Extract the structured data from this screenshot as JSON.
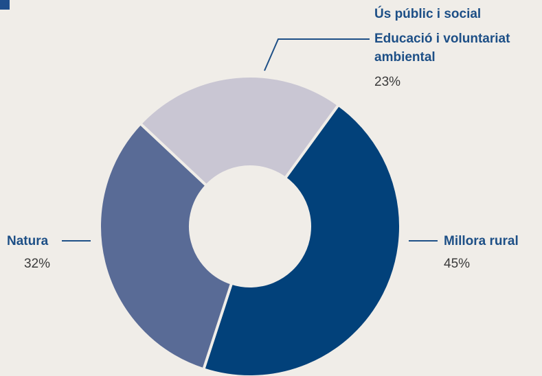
{
  "colors": {
    "background": "#f0ede8",
    "label_category": "#1d4f86",
    "label_value": "#3a3a3a",
    "leader_line": "#1d4f86"
  },
  "chart_data": {
    "type": "pie",
    "variant": "donut",
    "slices": [
      {
        "label": "Millora rural",
        "value": 45,
        "value_label": "45%",
        "color": "#02417a"
      },
      {
        "label": "Natura",
        "value": 32,
        "value_label": "32%",
        "color": "#596b96"
      },
      {
        "label": "Ús públic i social",
        "label2": "Educació i voluntariat",
        "label3": "ambiental",
        "value": 23,
        "value_label": "23%",
        "color": "#c9c6d3"
      }
    ]
  }
}
